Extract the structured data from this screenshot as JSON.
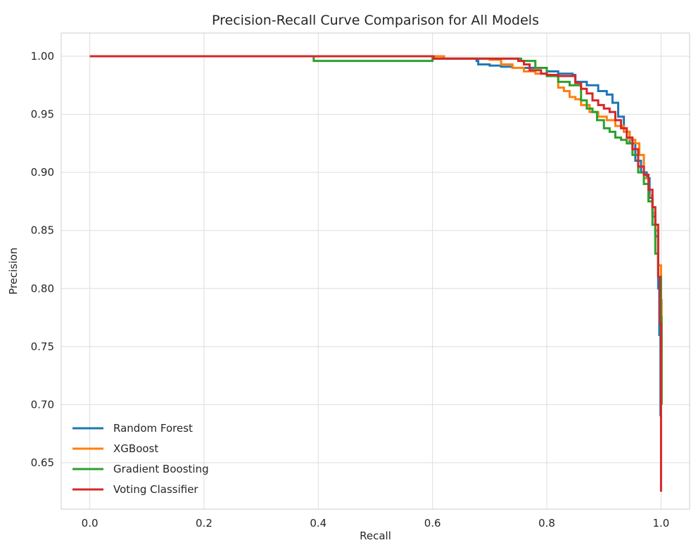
{
  "chart_data": {
    "type": "line",
    "title": "Precision-Recall Curve Comparison for All Models",
    "xlabel": "Recall",
    "ylabel": "Precision",
    "xlim": [
      -0.05,
      1.05
    ],
    "ylim": [
      0.61,
      1.02
    ],
    "xticks": [
      0.0,
      0.2,
      0.4,
      0.6,
      0.8,
      1.0
    ],
    "xtick_labels": [
      "0.0",
      "0.2",
      "0.4",
      "0.6",
      "0.8",
      "1.0"
    ],
    "yticks": [
      0.65,
      0.7,
      0.75,
      0.8,
      0.85,
      0.9,
      0.95,
      1.0
    ],
    "ytick_labels": [
      "0.65",
      "0.70",
      "0.75",
      "0.80",
      "0.85",
      "0.90",
      "0.95",
      "1.00"
    ],
    "grid": true,
    "legend_position": "lower-left",
    "series": [
      {
        "name": "Random Forest",
        "color": "#1f77b4",
        "points": [
          [
            0.0,
            1.0
          ],
          [
            0.618,
            1.0
          ],
          [
            0.62,
            0.998
          ],
          [
            0.675,
            0.998
          ],
          [
            0.677,
            0.996
          ],
          [
            0.68,
            0.993
          ],
          [
            0.7,
            0.992
          ],
          [
            0.72,
            0.991
          ],
          [
            0.74,
            0.99
          ],
          [
            0.77,
            0.99
          ],
          [
            0.8,
            0.987
          ],
          [
            0.82,
            0.985
          ],
          [
            0.845,
            0.984
          ],
          [
            0.85,
            0.978
          ],
          [
            0.87,
            0.975
          ],
          [
            0.88,
            0.975
          ],
          [
            0.89,
            0.97
          ],
          [
            0.905,
            0.967
          ],
          [
            0.915,
            0.96
          ],
          [
            0.925,
            0.948
          ],
          [
            0.935,
            0.935
          ],
          [
            0.945,
            0.925
          ],
          [
            0.955,
            0.91
          ],
          [
            0.965,
            0.9
          ],
          [
            0.975,
            0.895
          ],
          [
            0.98,
            0.878
          ],
          [
            0.985,
            0.862
          ],
          [
            0.99,
            0.845
          ],
          [
            0.995,
            0.8
          ],
          [
            0.997,
            0.76
          ],
          [
            0.999,
            0.69
          ]
        ]
      },
      {
        "name": "XGBoost",
        "color": "#ff7f0e",
        "points": [
          [
            0.0,
            1.0
          ],
          [
            0.6,
            1.0
          ],
          [
            0.62,
            0.998
          ],
          [
            0.7,
            0.997
          ],
          [
            0.72,
            0.993
          ],
          [
            0.74,
            0.99
          ],
          [
            0.76,
            0.987
          ],
          [
            0.78,
            0.985
          ],
          [
            0.8,
            0.983
          ],
          [
            0.82,
            0.973
          ],
          [
            0.83,
            0.97
          ],
          [
            0.84,
            0.965
          ],
          [
            0.85,
            0.963
          ],
          [
            0.86,
            0.958
          ],
          [
            0.875,
            0.952
          ],
          [
            0.89,
            0.948
          ],
          [
            0.905,
            0.945
          ],
          [
            0.92,
            0.94
          ],
          [
            0.935,
            0.935
          ],
          [
            0.945,
            0.928
          ],
          [
            0.955,
            0.925
          ],
          [
            0.962,
            0.915
          ],
          [
            0.97,
            0.895
          ],
          [
            0.978,
            0.88
          ],
          [
            0.985,
            0.865
          ],
          [
            0.99,
            0.85
          ],
          [
            0.995,
            0.82
          ],
          [
            1.0,
            0.79
          ],
          [
            1.001,
            0.7
          ]
        ]
      },
      {
        "name": "Gradient Boosting",
        "color": "#2ca02c",
        "points": [
          [
            0.0,
            1.0
          ],
          [
            0.39,
            1.0
          ],
          [
            0.392,
            0.996
          ],
          [
            0.6,
            0.998
          ],
          [
            0.62,
            0.998
          ],
          [
            0.75,
            0.998
          ],
          [
            0.755,
            0.996
          ],
          [
            0.775,
            0.996
          ],
          [
            0.78,
            0.99
          ],
          [
            0.8,
            0.983
          ],
          [
            0.82,
            0.978
          ],
          [
            0.84,
            0.975
          ],
          [
            0.86,
            0.962
          ],
          [
            0.87,
            0.955
          ],
          [
            0.88,
            0.952
          ],
          [
            0.888,
            0.945
          ],
          [
            0.9,
            0.938
          ],
          [
            0.91,
            0.935
          ],
          [
            0.92,
            0.93
          ],
          [
            0.93,
            0.928
          ],
          [
            0.94,
            0.925
          ],
          [
            0.95,
            0.915
          ],
          [
            0.96,
            0.9
          ],
          [
            0.97,
            0.89
          ],
          [
            0.978,
            0.875
          ],
          [
            0.985,
            0.855
          ],
          [
            0.99,
            0.83
          ],
          [
            0.995,
            0.81
          ],
          [
            1.0,
            0.775
          ],
          [
            1.001,
            0.7
          ]
        ]
      },
      {
        "name": "Voting Classifier",
        "color": "#d62728",
        "points": [
          [
            0.0,
            1.0
          ],
          [
            0.6,
            1.0
          ],
          [
            0.602,
            0.998
          ],
          [
            0.745,
            0.998
          ],
          [
            0.75,
            0.996
          ],
          [
            0.76,
            0.993
          ],
          [
            0.77,
            0.988
          ],
          [
            0.79,
            0.985
          ],
          [
            0.8,
            0.984
          ],
          [
            0.82,
            0.983
          ],
          [
            0.84,
            0.983
          ],
          [
            0.85,
            0.977
          ],
          [
            0.86,
            0.972
          ],
          [
            0.87,
            0.968
          ],
          [
            0.88,
            0.962
          ],
          [
            0.89,
            0.958
          ],
          [
            0.9,
            0.955
          ],
          [
            0.91,
            0.952
          ],
          [
            0.92,
            0.945
          ],
          [
            0.93,
            0.938
          ],
          [
            0.94,
            0.93
          ],
          [
            0.95,
            0.92
          ],
          [
            0.96,
            0.905
          ],
          [
            0.97,
            0.898
          ],
          [
            0.978,
            0.885
          ],
          [
            0.985,
            0.87
          ],
          [
            0.99,
            0.855
          ],
          [
            0.995,
            0.81
          ],
          [
            0.998,
            0.77
          ],
          [
            1.0,
            0.72
          ],
          [
            1.0,
            0.625
          ]
        ]
      }
    ]
  }
}
